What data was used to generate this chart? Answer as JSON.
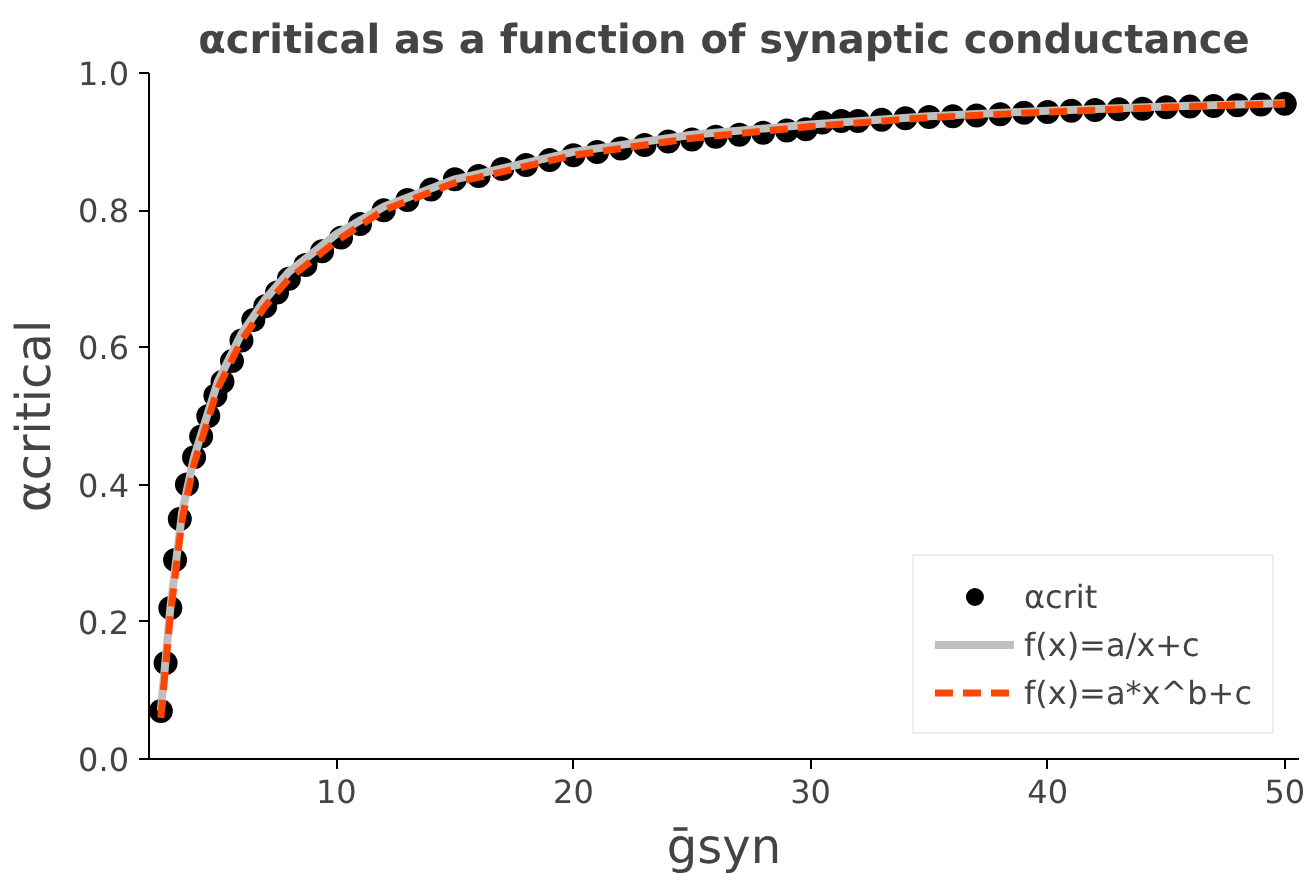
{
  "chart_data": {
    "type": "scatter",
    "title": "αcritical as a function of synaptic conductance",
    "xlabel": "ḡsyn",
    "ylabel": "αcritical",
    "xlim": [
      2.1,
      50.6
    ],
    "ylim": [
      0,
      1.0
    ],
    "xticks": [
      10,
      20,
      30,
      40,
      50
    ],
    "yticks": [
      {
        "value": 0,
        "label": "0.0"
      },
      {
        "value": 0.2,
        "label": "0.2"
      },
      {
        "value": 0.4,
        "label": "0.4"
      },
      {
        "value": 0.6,
        "label": "0.6"
      },
      {
        "value": 0.8,
        "label": "0.8"
      },
      {
        "value": 1.0,
        "label": "1.0"
      }
    ],
    "grid": false,
    "legend": "bottom right",
    "series": [
      {
        "name": "αcrit",
        "marker": "circle",
        "color": "#000000",
        "x": [
          2.6,
          2.8,
          3.0,
          3.2,
          3.4,
          3.7,
          4.0,
          4.3,
          4.6,
          4.9,
          5.2,
          5.6,
          6.0,
          6.5,
          7.0,
          7.5,
          8.0,
          8.7,
          9.4,
          10.2,
          11,
          12,
          13,
          14,
          15,
          16,
          17,
          18,
          19,
          20,
          21,
          22,
          23,
          24,
          25,
          26,
          27,
          28,
          29,
          29.8,
          30.5,
          31.3,
          32,
          33,
          34,
          35,
          36,
          37,
          38,
          39,
          40,
          41,
          42,
          43,
          44,
          45,
          46,
          47,
          48,
          49,
          50
        ],
        "values": [
          0.07,
          0.14,
          0.22,
          0.29,
          0.35,
          0.4,
          0.44,
          0.47,
          0.5,
          0.53,
          0.55,
          0.58,
          0.61,
          0.64,
          0.66,
          0.68,
          0.7,
          0.72,
          0.74,
          0.76,
          0.78,
          0.8,
          0.815,
          0.83,
          0.845,
          0.85,
          0.86,
          0.866,
          0.873,
          0.88,
          0.885,
          0.89,
          0.895,
          0.9,
          0.903,
          0.907,
          0.91,
          0.913,
          0.916,
          0.918,
          0.928,
          0.93,
          0.93,
          0.932,
          0.934,
          0.936,
          0.937,
          0.938,
          0.94,
          0.942,
          0.943,
          0.945,
          0.946,
          0.947,
          0.948,
          0.95,
          0.951,
          0.952,
          0.953,
          0.954,
          0.955
        ]
      },
      {
        "name": "f(x)=a/x+c",
        "type": "line",
        "line_style": "solid",
        "color": "#bfbfbf",
        "x": [
          2.6,
          3,
          3.5,
          4,
          5,
          6,
          7,
          8,
          10,
          12,
          15,
          20,
          25,
          30,
          35,
          40,
          45,
          50
        ],
        "values": [
          0.07,
          0.22,
          0.36,
          0.44,
          0.55,
          0.62,
          0.67,
          0.71,
          0.765,
          0.805,
          0.845,
          0.885,
          0.91,
          0.925,
          0.937,
          0.945,
          0.951,
          0.956
        ]
      },
      {
        "name": "f(x)=a*x^b+c",
        "type": "line",
        "line_style": "dashed",
        "color": "#ff4500",
        "x": [
          2.6,
          3,
          3.5,
          4,
          5,
          6,
          7,
          8,
          10,
          12,
          15,
          20,
          25,
          30,
          35,
          40,
          45,
          50
        ],
        "values": [
          0.06,
          0.21,
          0.35,
          0.43,
          0.54,
          0.61,
          0.66,
          0.7,
          0.755,
          0.8,
          0.84,
          0.88,
          0.905,
          0.922,
          0.935,
          0.943,
          0.95,
          0.955
        ]
      }
    ]
  }
}
